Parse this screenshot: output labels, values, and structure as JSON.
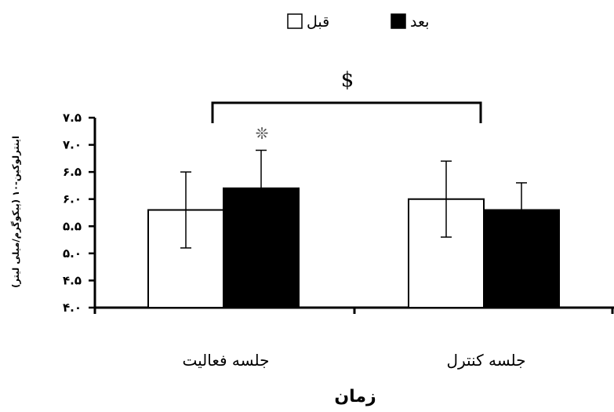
{
  "chart_data": {
    "type": "bar",
    "categories": [
      "جلسه فعالیت",
      "جلسه کنترل"
    ],
    "series": [
      {
        "name": "قبل",
        "values": [
          5.8,
          6.0
        ],
        "errors": [
          0.7,
          0.7
        ],
        "color": "#ffffff"
      },
      {
        "name": "بعد",
        "values": [
          6.2,
          5.8
        ],
        "errors": [
          0.7,
          0.5
        ],
        "color": "#000000"
      }
    ],
    "ylim": [
      4.0,
      7.5
    ],
    "yticks": [
      4.0,
      4.5,
      5.0,
      5.5,
      6.0,
      6.5,
      7.0,
      7.5
    ],
    "ytick_labels": [
      "۴.۰",
      "۴.۵",
      "۵.۰",
      "۵.۵",
      "۶.۰",
      "۶.۵",
      "۷.۰",
      "۷.۵"
    ],
    "xlabel": "زمان",
    "ylabel": "اینترلوکین-۱۰ (پیکوگرم/میلی لیتر)",
    "legend_position": "top-center",
    "grid": false,
    "annotations": {
      "bracket_symbol": "$",
      "significance_symbol": "❊"
    }
  }
}
